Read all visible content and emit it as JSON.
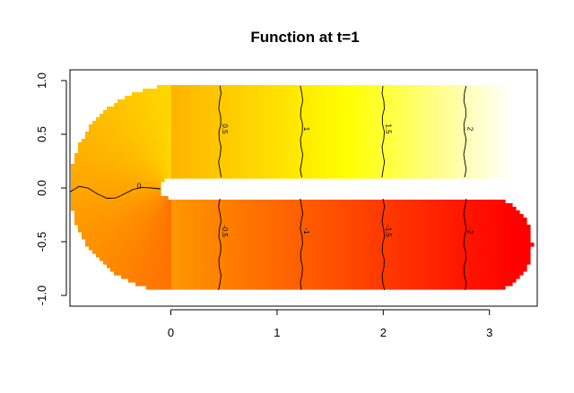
{
  "chart_data": {
    "type": "heatmap",
    "title": "Function at t=1",
    "xlabel": "",
    "ylabel": "",
    "xlim": [
      -0.95,
      3.45
    ],
    "ylim": [
      -1.1,
      1.1
    ],
    "x_ticks": [
      {
        "value": 0,
        "label": "0"
      },
      {
        "value": 1,
        "label": "1"
      },
      {
        "value": 2,
        "label": "2"
      },
      {
        "value": 3,
        "label": "3"
      }
    ],
    "y_ticks": [
      {
        "value": -1.0,
        "label": "-1.0"
      },
      {
        "value": -0.5,
        "label": "-0.5"
      },
      {
        "value": 0.0,
        "label": "0.0"
      },
      {
        "value": 0.5,
        "label": "0.5"
      },
      {
        "value": 1.0,
        "label": "1.0"
      }
    ],
    "domain": "U-shaped horseshoe: upper arm y in [0.1, 0.95], x in [0, 3.2]; lower arm y in [-0.95, -0.1], x in [0, 3.4]; left bend is a half-annulus around the origin",
    "color_scale": {
      "name": "heat",
      "low_color": "#FF0000",
      "mid_color": "#FFA500",
      "high_color": "#FFFF00",
      "top_color": "#FFFFFF",
      "min": -2.3,
      "max": 2.3
    },
    "contour_levels": [
      {
        "level": 0,
        "label": "0"
      },
      {
        "level": 0.5,
        "label": "0.5"
      },
      {
        "level": 1,
        "label": "1"
      },
      {
        "level": 1.5,
        "label": "1.5"
      },
      {
        "level": 2,
        "label": "2"
      },
      {
        "level": -0.5,
        "label": "-0.5"
      },
      {
        "level": -1,
        "label": "-1"
      },
      {
        "level": -1.5,
        "label": "-1.5"
      },
      {
        "level": -2,
        "label": "-2"
      }
    ],
    "grid": false,
    "legend": "none"
  }
}
